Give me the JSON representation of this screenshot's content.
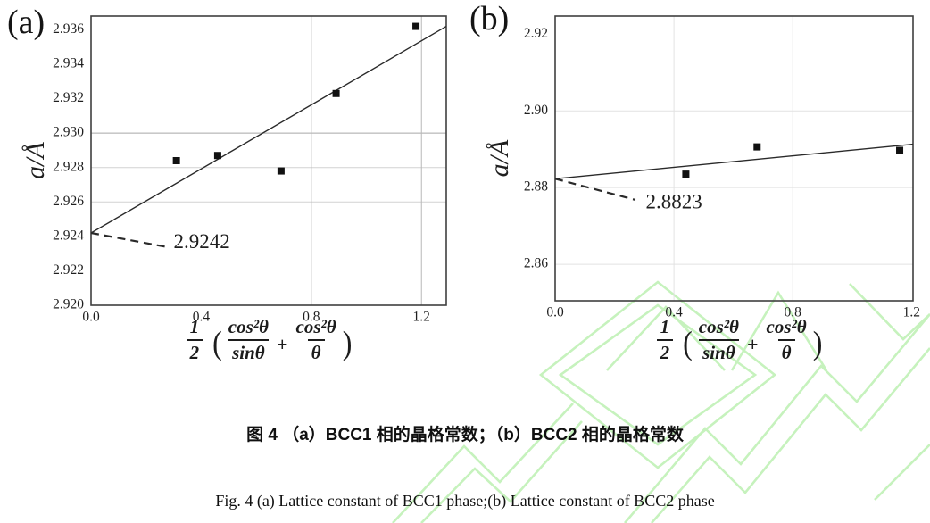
{
  "figure": {
    "caption_zh": "图 4 （a）BCC1 相的晶格常数；（b）BCC2 相的晶格常数",
    "caption_en": "Fig. 4 (a) Lattice constant of BCC1 phase;(b) Lattice constant of BCC2 phase",
    "watermark_color": "#c6f2bd",
    "text_color": "#1f1f1f"
  },
  "formula": {
    "num": "1",
    "den": "2",
    "open": "(",
    "f1num": "cos²θ",
    "f1den": "sinθ",
    "plus": "+",
    "f2num": "cos²θ",
    "f2den": "θ",
    "close": ")"
  },
  "chart_data": [
    {
      "type": "scatter",
      "panel_label": "(a)",
      "title": "Lattice constant of BCC1 phase",
      "ylabel": "a/Å",
      "xlabel": "½(cos²θ/sinθ + cos²θ/θ)",
      "xlim": [
        0,
        1.29
      ],
      "ylim": [
        2.92,
        2.9368
      ],
      "xticks": [
        {
          "v": 0.0,
          "label": "0.0"
        },
        {
          "v": 0.4,
          "label": "0.4"
        },
        {
          "v": 0.8,
          "label": "0.8"
        },
        {
          "v": 1.2,
          "label": "1.2"
        }
      ],
      "yticks": [
        {
          "v": 2.92,
          "label": "2.920"
        },
        {
          "v": 2.922,
          "label": "2.922"
        },
        {
          "v": 2.924,
          "label": "2.924"
        },
        {
          "v": 2.926,
          "label": "2.926"
        },
        {
          "v": 2.928,
          "label": "2.928"
        },
        {
          "v": 2.93,
          "label": "2.930"
        },
        {
          "v": 2.932,
          "label": "2.932"
        },
        {
          "v": 2.934,
          "label": "2.934"
        },
        {
          "v": 2.936,
          "label": "2.936"
        }
      ],
      "grid_h": [
        {
          "v": 2.926,
          "color": "#d2d2d2"
        },
        {
          "v": 2.928,
          "color": "#d2d2d2"
        },
        {
          "v": 2.93,
          "color": "#a8a8a8"
        }
      ],
      "grid_v": [
        {
          "v": 0.8,
          "color": "#b8b8b8"
        },
        {
          "v": 1.2,
          "color": "#b8b8b8"
        }
      ],
      "points": [
        [
          0.31,
          2.9284
        ],
        [
          0.46,
          2.9287
        ],
        [
          0.69,
          2.9278
        ],
        [
          0.89,
          2.9323
        ],
        [
          1.18,
          2.9362
        ]
      ],
      "fit_line": [
        [
          0,
          2.9242
        ],
        [
          1.29,
          2.9362
        ]
      ],
      "intercept_label": "2.9242",
      "annotation": {
        "dash": [
          [
            0,
            2.9242
          ],
          [
            0.27,
            2.9234
          ]
        ],
        "label_pos": [
          0.3,
          2.9236
        ]
      }
    },
    {
      "type": "scatter",
      "panel_label": "(b)",
      "title": "Lattice constant of BCC2 phase",
      "ylabel": "a/Å",
      "xlabel": "½(cos²θ/sinθ + cos²θ/θ)",
      "xlim": [
        0,
        1.205
      ],
      "ylim": [
        2.8505,
        2.9247
      ],
      "xticks": [
        {
          "v": 0.0,
          "label": "0.0"
        },
        {
          "v": 0.4,
          "label": "0.4"
        },
        {
          "v": 0.8,
          "label": "0.8"
        },
        {
          "v": 1.2,
          "label": "1.2"
        }
      ],
      "yticks": [
        {
          "v": 2.86,
          "label": "2.86"
        },
        {
          "v": 2.88,
          "label": "2.88"
        },
        {
          "v": 2.9,
          "label": "2.90"
        },
        {
          "v": 2.92,
          "label": "2.92"
        }
      ],
      "grid_h": [
        {
          "v": 2.86,
          "color": "#e2e2e2"
        },
        {
          "v": 2.88,
          "color": "#e2e2e2"
        },
        {
          "v": 2.9,
          "color": "#e2e2e2"
        }
      ],
      "grid_v": [
        {
          "v": 0.4,
          "color": "#e2e2e2"
        },
        {
          "v": 0.8,
          "color": "#e2e2e2"
        }
      ],
      "points": [
        [
          0.44,
          2.8835
        ],
        [
          0.68,
          2.8906
        ],
        [
          1.16,
          2.8897
        ]
      ],
      "fit_line": [
        [
          0,
          2.8823
        ],
        [
          1.205,
          2.8913
        ]
      ],
      "intercept_label": "2.8823",
      "annotation": {
        "dash": [
          [
            0,
            2.8823
          ],
          [
            0.27,
            2.8768
          ]
        ],
        "label_pos": [
          0.305,
          2.8758
        ]
      }
    }
  ]
}
